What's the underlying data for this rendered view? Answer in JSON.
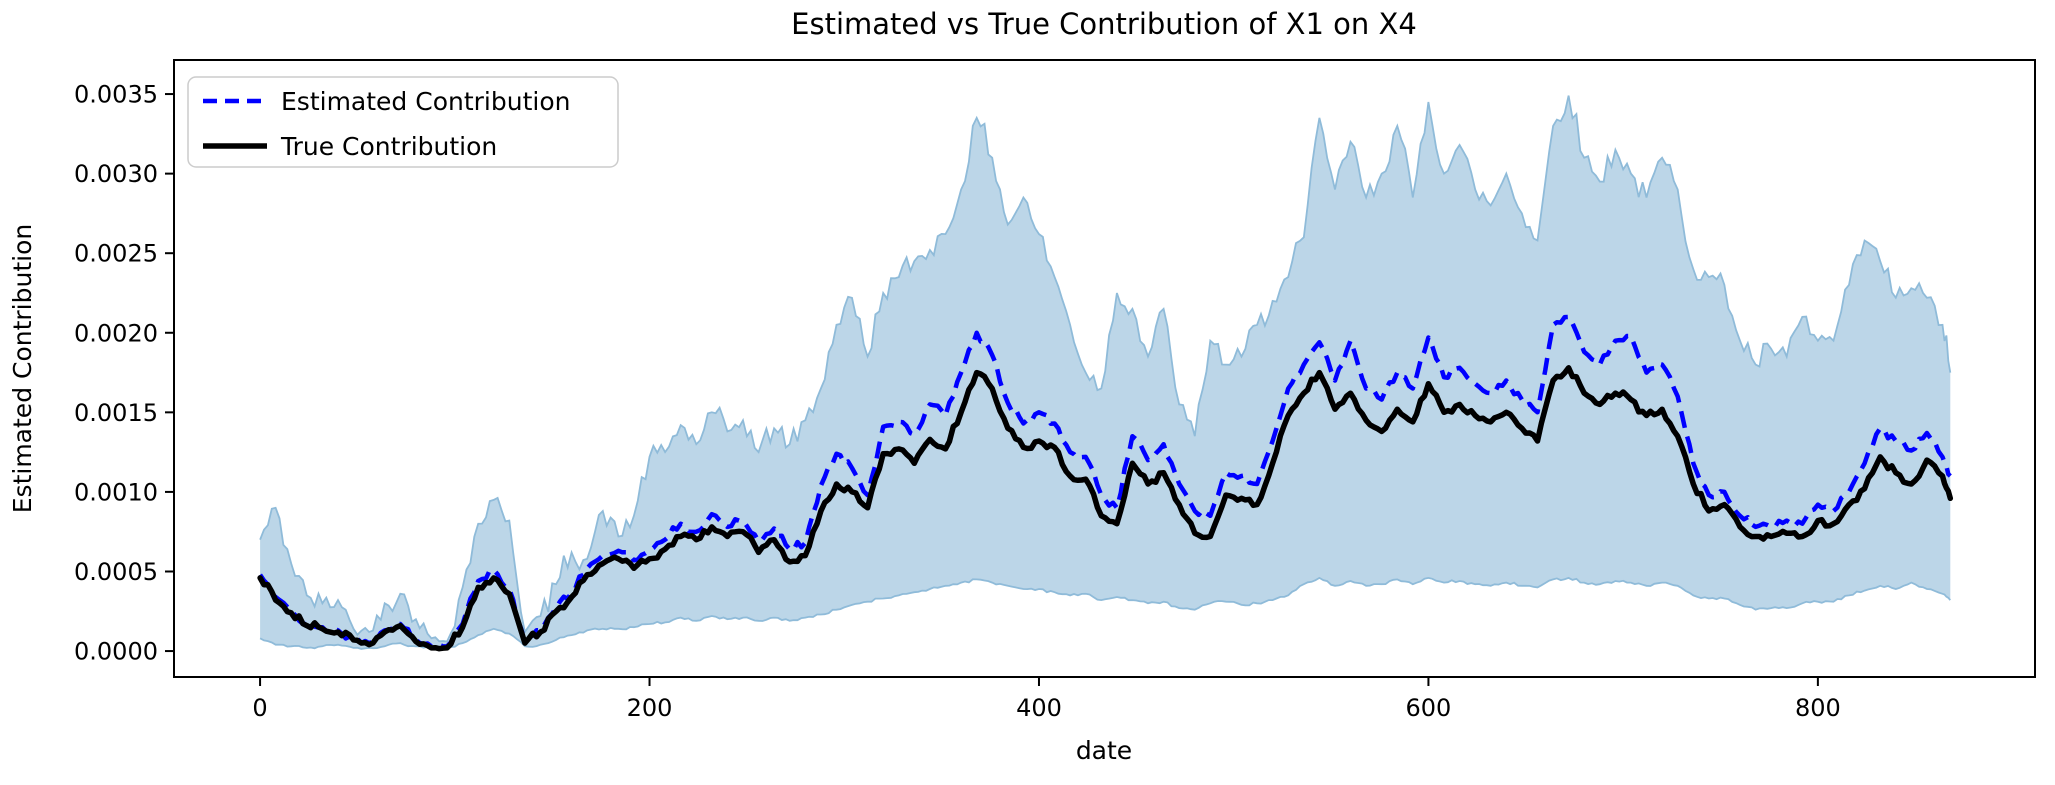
{
  "chart_data": {
    "type": "line",
    "title": "Estimated vs True Contribution of X1 on X4",
    "xlabel": "date",
    "ylabel": "Estimated Contribution",
    "legend_position": "upper left",
    "grid": false,
    "xlim": [
      -44.2,
      911.5
    ],
    "ylim": [
      -0.000163,
      0.003714
    ],
    "x_ticks": {
      "values": [
        0,
        200,
        400,
        600,
        800
      ],
      "labels": [
        "0",
        "200",
        "400",
        "600",
        "800"
      ]
    },
    "y_ticks": {
      "values": [
        0.0,
        0.0005,
        0.001,
        0.0015,
        0.002,
        0.0025,
        0.003,
        0.0035
      ],
      "labels": [
        "0.0000",
        "0.0005",
        "0.0010",
        "0.0015",
        "0.0020",
        "0.0025",
        "0.0030",
        "0.0035"
      ]
    },
    "style": {
      "estimated_color": "#0000ff",
      "estimated_dash": "17 9",
      "estimated_width": 4.5,
      "true_color": "#000000",
      "true_width": 5.5,
      "band_fill": "#bcd6e8",
      "band_edge": "#8fbbd9",
      "band_edge_width": 1.8,
      "spine_color": "#000000",
      "background": "#ffffff"
    },
    "x": [
      0,
      8,
      16,
      24,
      32,
      40,
      48,
      56,
      64,
      72,
      80,
      88,
      96,
      104,
      112,
      120,
      128,
      136,
      144,
      152,
      160,
      168,
      176,
      184,
      192,
      200,
      208,
      216,
      224,
      232,
      240,
      248,
      256,
      264,
      272,
      280,
      288,
      296,
      304,
      312,
      320,
      328,
      336,
      344,
      352,
      360,
      368,
      376,
      384,
      392,
      400,
      408,
      416,
      424,
      432,
      440,
      448,
      456,
      464,
      472,
      480,
      488,
      496,
      504,
      512,
      520,
      528,
      536,
      544,
      552,
      560,
      568,
      576,
      584,
      592,
      600,
      608,
      616,
      624,
      632,
      640,
      648,
      656,
      664,
      672,
      680,
      688,
      696,
      704,
      712,
      720,
      728,
      736,
      744,
      752,
      760,
      768,
      776,
      784,
      792,
      800,
      808,
      816,
      824,
      832,
      840,
      848,
      856,
      864,
      868
    ],
    "series": [
      {
        "name": "Estimated Contribution",
        "values": [
          0.00048,
          0.00034,
          0.00025,
          0.00017,
          0.00015,
          0.00013,
          8e-05,
          5e-05,
          0.00013,
          0.00017,
          7e-05,
          3e-05,
          3e-05,
          0.00017,
          0.00044,
          0.00051,
          0.00039,
          6e-05,
          0.00013,
          0.00027,
          0.00037,
          0.00052,
          0.0006,
          0.00063,
          0.00057,
          0.00063,
          0.0007,
          0.0008,
          0.00075,
          0.00086,
          0.00078,
          0.00082,
          0.00069,
          0.00077,
          0.00064,
          0.00068,
          0.00104,
          0.00124,
          0.00115,
          0.00098,
          0.00141,
          0.00144,
          0.00136,
          0.00155,
          0.00148,
          0.00175,
          0.002,
          0.00186,
          0.00156,
          0.00143,
          0.0015,
          0.00143,
          0.00125,
          0.00122,
          0.00098,
          0.0009,
          0.00135,
          0.0012,
          0.0013,
          0.00105,
          0.00088,
          0.00085,
          0.00112,
          0.0011,
          0.00105,
          0.00132,
          0.00165,
          0.0018,
          0.00194,
          0.0017,
          0.00195,
          0.00165,
          0.00158,
          0.00175,
          0.00165,
          0.00197,
          0.00172,
          0.00178,
          0.00168,
          0.00162,
          0.0017,
          0.00158,
          0.0015,
          0.00205,
          0.0021,
          0.00188,
          0.0018,
          0.00195,
          0.00198,
          0.00175,
          0.0018,
          0.0016,
          0.00118,
          0.00098,
          0.001,
          0.00085,
          0.00078,
          0.00078,
          0.00082,
          0.0008,
          0.00092,
          0.00088,
          0.001,
          0.00118,
          0.0014,
          0.00132,
          0.00126,
          0.00137,
          0.00122,
          0.0011
        ]
      },
      {
        "name": "True Contribution",
        "values": [
          0.00046,
          0.00032,
          0.00024,
          0.00016,
          0.00014,
          0.00012,
          7e-05,
          4e-05,
          0.00012,
          0.00016,
          6e-05,
          2e-05,
          2e-05,
          0.00015,
          0.0004,
          0.00046,
          0.00036,
          5e-05,
          0.00012,
          0.00025,
          0.00034,
          0.00048,
          0.00055,
          0.00058,
          0.00052,
          0.00058,
          0.00064,
          0.00072,
          0.0007,
          0.00078,
          0.00072,
          0.00075,
          0.00062,
          0.0007,
          0.00056,
          0.0006,
          0.00088,
          0.00105,
          0.001,
          0.0009,
          0.00124,
          0.00127,
          0.00118,
          0.00133,
          0.00127,
          0.0015,
          0.00175,
          0.00165,
          0.0014,
          0.00128,
          0.00132,
          0.00128,
          0.0011,
          0.00108,
          0.00085,
          0.0008,
          0.00118,
          0.00105,
          0.00112,
          0.00092,
          0.00074,
          0.00072,
          0.00098,
          0.00096,
          0.00092,
          0.00118,
          0.00148,
          0.00162,
          0.00175,
          0.00152,
          0.00162,
          0.00145,
          0.00138,
          0.00152,
          0.00144,
          0.00168,
          0.0015,
          0.00155,
          0.00148,
          0.00144,
          0.0015,
          0.0014,
          0.00132,
          0.0017,
          0.00178,
          0.00162,
          0.00155,
          0.00162,
          0.00158,
          0.00148,
          0.00152,
          0.00135,
          0.00105,
          0.00088,
          0.00092,
          0.00078,
          0.00072,
          0.00072,
          0.00074,
          0.00072,
          0.00082,
          0.0008,
          0.00092,
          0.00102,
          0.00122,
          0.00112,
          0.00105,
          0.0012,
          0.0011,
          0.00096
        ]
      }
    ],
    "band": {
      "name": "confidence-band",
      "upper": [
        0.0007,
        0.0009,
        0.00055,
        0.00035,
        0.0003,
        0.00032,
        0.00014,
        0.00012,
        0.0003,
        0.00036,
        0.0002,
        8e-05,
        6e-05,
        0.0004,
        0.0008,
        0.00095,
        0.00082,
        0.00012,
        0.00022,
        0.00042,
        0.00062,
        0.00058,
        0.00088,
        0.00072,
        0.00085,
        0.00122,
        0.00125,
        0.00142,
        0.0013,
        0.0015,
        0.00138,
        0.00145,
        0.00125,
        0.0014,
        0.0013,
        0.00145,
        0.00165,
        0.00205,
        0.00222,
        0.00185,
        0.00225,
        0.00235,
        0.00245,
        0.00252,
        0.00262,
        0.0029,
        0.00335,
        0.0031,
        0.00268,
        0.00285,
        0.00262,
        0.00235,
        0.00205,
        0.00175,
        0.00165,
        0.00225,
        0.00215,
        0.00185,
        0.00215,
        0.00155,
        0.00135,
        0.00195,
        0.0018,
        0.00185,
        0.00205,
        0.0022,
        0.00235,
        0.0026,
        0.00335,
        0.0029,
        0.0032,
        0.00285,
        0.003,
        0.0033,
        0.00285,
        0.00345,
        0.003,
        0.00318,
        0.0029,
        0.0028,
        0.003,
        0.00275,
        0.00258,
        0.0033,
        0.00349,
        0.0031,
        0.00295,
        0.00315,
        0.003,
        0.00285,
        0.0031,
        0.0029,
        0.0024,
        0.00235,
        0.0023,
        0.00195,
        0.0018,
        0.0019,
        0.00185,
        0.0021,
        0.00195,
        0.00195,
        0.0023,
        0.00258,
        0.00245,
        0.00222,
        0.00228,
        0.00222,
        0.00205,
        0.00175
      ],
      "lower": [
        8e-05,
        4e-05,
        3e-05,
        2e-05,
        3e-05,
        4e-05,
        2e-05,
        2e-05,
        3e-05,
        5e-05,
        3e-05,
        2e-05,
        2e-05,
        5e-05,
        0.0001,
        0.00014,
        0.00011,
        3e-05,
        4e-05,
        7e-05,
        0.0001,
        0.00013,
        0.00014,
        0.00014,
        0.00015,
        0.00017,
        0.00018,
        0.00021,
        0.00019,
        0.00022,
        0.0002,
        0.00021,
        0.00019,
        0.00021,
        0.00019,
        0.00021,
        0.00023,
        0.00026,
        0.00029,
        0.00031,
        0.00033,
        0.00035,
        0.00037,
        0.00039,
        0.00041,
        0.00043,
        0.00045,
        0.00043,
        0.00041,
        0.00039,
        0.00039,
        0.00037,
        0.00035,
        0.00036,
        0.00032,
        0.00034,
        0.00032,
        0.0003,
        0.00031,
        0.00027,
        0.00026,
        0.0003,
        0.00031,
        0.00029,
        0.0003,
        0.00032,
        0.00035,
        0.00042,
        0.00046,
        0.00041,
        0.00044,
        0.00041,
        0.00042,
        0.00045,
        0.00042,
        0.00046,
        0.00043,
        0.00044,
        0.00042,
        0.00041,
        0.00043,
        0.00041,
        0.0004,
        0.00045,
        0.00046,
        0.00043,
        0.00042,
        0.00044,
        0.00043,
        0.00041,
        0.00043,
        0.00041,
        0.00035,
        0.00033,
        0.00033,
        0.00029,
        0.00026,
        0.00027,
        0.00027,
        0.0003,
        0.00031,
        0.00031,
        0.00035,
        0.00038,
        0.00041,
        0.00039,
        0.00043,
        0.00039,
        0.00036,
        0.00032
      ]
    }
  }
}
